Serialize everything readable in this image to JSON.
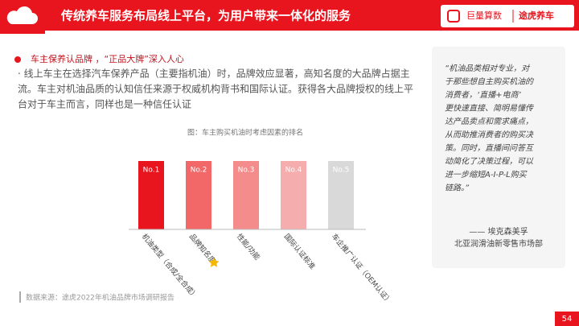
{
  "header": {
    "title": "传统养车服务布局线上平台，为用户带来一体化的服务",
    "logo_left": "巨量算数",
    "logo_right": "途虎养车"
  },
  "bullet": {
    "heading": "车主保养认品牌 ，“正品大牌”深入人心",
    "body": [
      "·   线上车主在选择汽车保养产品（主要指机油）时，品牌效应显著，高知名度的大品牌占据主",
      "流。车主对机油品质的认知信任来源于权威机构背书和国际认证。获得各大品牌授权的线上平",
      "台对于车主而言，同样也是一种信任认证"
    ]
  },
  "figure": {
    "caption": "图：车主购买机油时考虑因素的排名",
    "bars": [
      {
        "rank": "No.1",
        "label": "机油类型（合成/全合成）",
        "color": "#e8141e"
      },
      {
        "rank": "No.2",
        "label": "品牌知名度",
        "color": "#f26868"
      },
      {
        "rank": "No.3",
        "label": "性能/功能",
        "color": "#f48c8c"
      },
      {
        "rank": "No.4",
        "label": "国际认证标准",
        "color": "#f5adad"
      },
      {
        "rank": "No.5",
        "label": "车企推广认证（OEM认证）",
        "color": "#d9d9d9"
      }
    ]
  },
  "source": "数据来源：途虎2022年机油品牌市场调研报告",
  "quote": {
    "lines": [
      "“机油品类相对专业，对",
      "于那些想自主购买机油的",
      "消费者，‘直播+电商’",
      "更快速直接、简明易懂传",
      "达产品卖点和需求痛点，",
      "从而助推消费者的购买决",
      "策。同时，直播间问答互",
      "动简化了决策过程，可以",
      "进一步缩短A-I-P-L购买",
      "链路。”"
    ],
    "author": "—— 埃克森美孚",
    "department": "北亚润滑油新零售市场部"
  },
  "page_number": "54"
}
